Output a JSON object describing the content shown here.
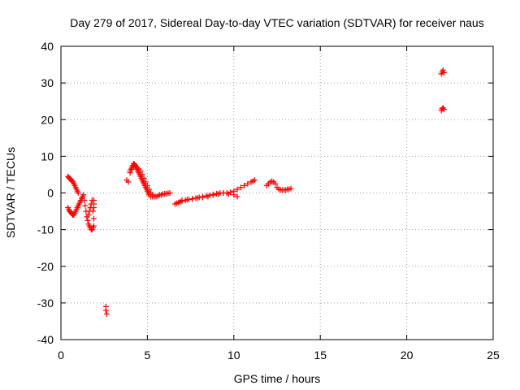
{
  "chart_data": {
    "type": "scatter",
    "title": "Day 279 of 2017, Sidereal Day-to-day VTEC variation (SDTVAR) for receiver naus",
    "xlabel": "GPS time / hours",
    "ylabel": "SDTVAR / TECUs",
    "xlim": [
      0,
      25
    ],
    "ylim": [
      -40,
      40
    ],
    "xticks": [
      0,
      5,
      10,
      15,
      20,
      25
    ],
    "yticks": [
      -40,
      -30,
      -20,
      -10,
      0,
      10,
      20,
      30,
      40
    ],
    "grid": true,
    "marker": "plus",
    "color": "#ff0000",
    "series": [
      {
        "name": "SDTVAR",
        "x": [
          0.4,
          0.45,
          0.5,
          0.55,
          0.6,
          0.65,
          0.7,
          0.75,
          0.8,
          0.85,
          0.9,
          0.95,
          1.0,
          1.05,
          1.1,
          1.15,
          1.2,
          1.25,
          1.3,
          1.35,
          1.4,
          1.45,
          1.5,
          1.55,
          1.6,
          1.65,
          1.7,
          1.75,
          1.8,
          1.85,
          1.9,
          0.4,
          0.45,
          0.5,
          0.55,
          0.6,
          0.65,
          0.7,
          0.75,
          0.8,
          0.85,
          0.9,
          0.95,
          1.0,
          1.6,
          1.65,
          1.7,
          1.75,
          1.8,
          1.85,
          1.9,
          1.9,
          1.9,
          1.9,
          2.6,
          2.6,
          2.65,
          3.8,
          3.9,
          4.0,
          4.05,
          4.1,
          4.15,
          4.2,
          4.25,
          4.3,
          4.35,
          4.4,
          4.45,
          4.5,
          4.55,
          4.6,
          4.65,
          4.7,
          4.75,
          4.8,
          4.85,
          4.9,
          4.95,
          5.0,
          5.05,
          5.1,
          5.2,
          5.3,
          5.4,
          5.5,
          5.6,
          5.7,
          5.8,
          5.9,
          6.0,
          6.1,
          6.2,
          6.3,
          4.0,
          4.1,
          4.2,
          4.3,
          4.4,
          4.5,
          4.6,
          4.7,
          4.8,
          4.9,
          5.0,
          5.1,
          5.2,
          5.3,
          6.6,
          6.7,
          6.8,
          6.9,
          7.0,
          7.2,
          7.4,
          7.6,
          7.8,
          8.0,
          8.2,
          8.4,
          8.6,
          8.8,
          9.0,
          9.2,
          9.4,
          9.6,
          9.8,
          10.0,
          10.2,
          10.4,
          10.6,
          10.8,
          11.0,
          11.1,
          11.2,
          7.0,
          7.3,
          7.6,
          7.9,
          8.2,
          8.5,
          8.8,
          9.1,
          9.4,
          9.7,
          10.0,
          10.2,
          11.9,
          12.0,
          12.1,
          12.2,
          12.3,
          12.4,
          12.5,
          12.6,
          12.7,
          12.8,
          12.9,
          13.0,
          13.1,
          13.2,
          13.3,
          22.0,
          22.05,
          22.1,
          22.15,
          22.0,
          22.05,
          22.1,
          22.15
        ],
        "y": [
          -4.0,
          -4.5,
          -5.0,
          -5.2,
          -5.5,
          -5.8,
          -6.0,
          -6.0,
          -5.5,
          -5.0,
          -4.5,
          -4.0,
          -3.5,
          -3.0,
          -2.5,
          -2.0,
          -1.5,
          -1.0,
          -0.5,
          -2.0,
          -3.5,
          -5.0,
          -6.5,
          -7.5,
          -8.5,
          -9.0,
          -9.5,
          -10.0,
          -10.0,
          -9.5,
          -9.0,
          4.5,
          4.2,
          4.0,
          3.8,
          3.5,
          3.2,
          3.0,
          2.5,
          2.0,
          1.5,
          1.0,
          0.5,
          0.0,
          -6.0,
          -5.0,
          -4.0,
          -3.0,
          -2.0,
          -5.0,
          -7.0,
          -4.0,
          -3.0,
          -2.0,
          -31.0,
          -32.0,
          -33.0,
          3.5,
          3.0,
          5.5,
          6.5,
          7.0,
          7.5,
          8.0,
          7.8,
          7.5,
          7.0,
          6.5,
          6.0,
          5.5,
          5.0,
          4.5,
          4.0,
          3.5,
          3.0,
          2.5,
          2.0,
          1.5,
          1.0,
          0.5,
          0.0,
          -0.5,
          -1.0,
          -1.0,
          -1.0,
          -1.0,
          -0.8,
          -0.5,
          -0.5,
          -0.3,
          -0.2,
          -0.2,
          -0.1,
          0.0,
          6.0,
          6.5,
          7.0,
          7.2,
          7.0,
          6.5,
          6.0,
          5.0,
          4.0,
          3.0,
          2.0,
          1.0,
          0.0,
          -0.5,
          -3.0,
          -2.8,
          -2.6,
          -2.4,
          -2.2,
          -2.0,
          -1.8,
          -1.6,
          -1.4,
          -1.2,
          -1.0,
          -0.8,
          -0.6,
          -0.4,
          -0.2,
          0.0,
          0.0,
          0.0,
          0.2,
          0.5,
          1.0,
          1.5,
          2.0,
          2.5,
          3.0,
          3.2,
          3.5,
          -2.0,
          -1.8,
          -1.6,
          -1.4,
          -1.2,
          -1.0,
          -0.6,
          -0.3,
          0.0,
          -0.3,
          -0.5,
          -1.0,
          2.0,
          2.5,
          3.0,
          3.2,
          3.0,
          2.5,
          1.5,
          1.0,
          0.8,
          0.8,
          0.8,
          0.8,
          1.0,
          1.0,
          1.2,
          32.5,
          33.0,
          33.5,
          32.8,
          22.5,
          23.0,
          23.2,
          22.8
        ]
      }
    ]
  }
}
